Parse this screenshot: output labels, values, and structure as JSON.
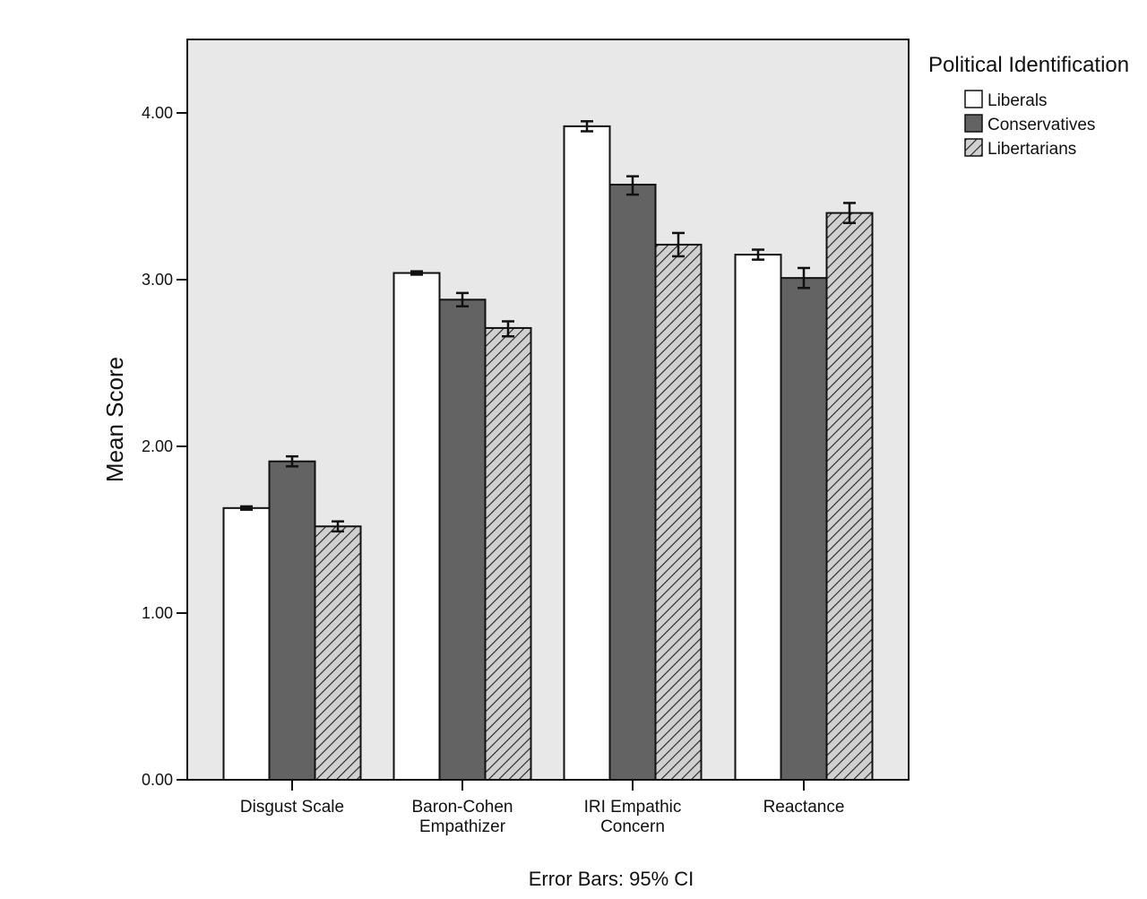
{
  "chart_data": {
    "type": "bar",
    "title": "",
    "xlabel": "",
    "ylabel": "Mean Score",
    "ylim": [
      0,
      4.45
    ],
    "yticks": [
      "0.00",
      "1.00",
      "2.00",
      "3.00",
      "4.00"
    ],
    "ytick_values": [
      0,
      1,
      2,
      3,
      4
    ],
    "categories": [
      [
        "Disgust Scale"
      ],
      [
        "Baron-Cohen",
        "Empathizer"
      ],
      [
        "IRI Empathic",
        "Concern"
      ],
      [
        "Reactance"
      ]
    ],
    "series": [
      {
        "name": "Liberals",
        "fill": "white",
        "values": [
          1.63,
          3.04,
          3.92,
          3.15
        ],
        "ci": [
          [
            1.62,
            1.64
          ],
          [
            3.03,
            3.05
          ],
          [
            3.89,
            3.95
          ],
          [
            3.12,
            3.18
          ]
        ]
      },
      {
        "name": "Conservatives",
        "fill": "dark",
        "values": [
          1.91,
          2.88,
          3.57,
          3.01
        ],
        "ci": [
          [
            1.88,
            1.94
          ],
          [
            2.84,
            2.92
          ],
          [
            3.51,
            3.62
          ],
          [
            2.95,
            3.07
          ]
        ]
      },
      {
        "name": "Libertarians",
        "fill": "hatch",
        "values": [
          1.52,
          2.71,
          3.21,
          3.4
        ],
        "ci": [
          [
            1.49,
            1.55
          ],
          [
            2.66,
            2.75
          ],
          [
            3.14,
            3.28
          ],
          [
            3.34,
            3.46
          ]
        ]
      }
    ],
    "legend": {
      "title": "Political Identification",
      "position": "top-right, outside plot"
    },
    "footnote": "Error Bars: 95% CI",
    "grid": false,
    "colors": {
      "plot_bg": "#e8e8e8",
      "dark_fill": "#636363",
      "hatch_bg": "#d0d0d0",
      "hatch_line": "#222222"
    }
  }
}
